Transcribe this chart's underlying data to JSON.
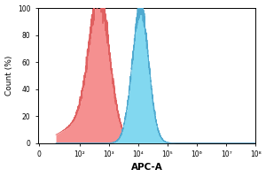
{
  "title": "",
  "xlabel": "APC-A",
  "ylabel": "Count (%)",
  "ylim": [
    0,
    100
  ],
  "yticks": [
    0,
    20,
    40,
    60,
    80,
    100
  ],
  "xtick_positions": [
    0,
    100,
    1000,
    10000,
    100000,
    1000000,
    10000000,
    100000000
  ],
  "xtick_labels": [
    "0",
    "10²",
    "10³",
    "10⁴",
    "10⁵",
    "10⁶",
    "10⁷",
    "10⁸"
  ],
  "red_peak_log": 2.68,
  "red_sigma_log": 0.35,
  "red_height": 100,
  "red_noise_amp": 5,
  "blue_peak_log": 4.08,
  "blue_sigma_log": 0.28,
  "blue_height": 100,
  "blue_noise_amp": 3,
  "red_fill_color": "#f59090",
  "red_edge_color": "#e06060",
  "blue_fill_color": "#82d8f0",
  "blue_edge_color": "#50aad0",
  "background_color": "#ffffff",
  "noise_seed": 7,
  "linthresh": 5,
  "linscale": 0.08
}
